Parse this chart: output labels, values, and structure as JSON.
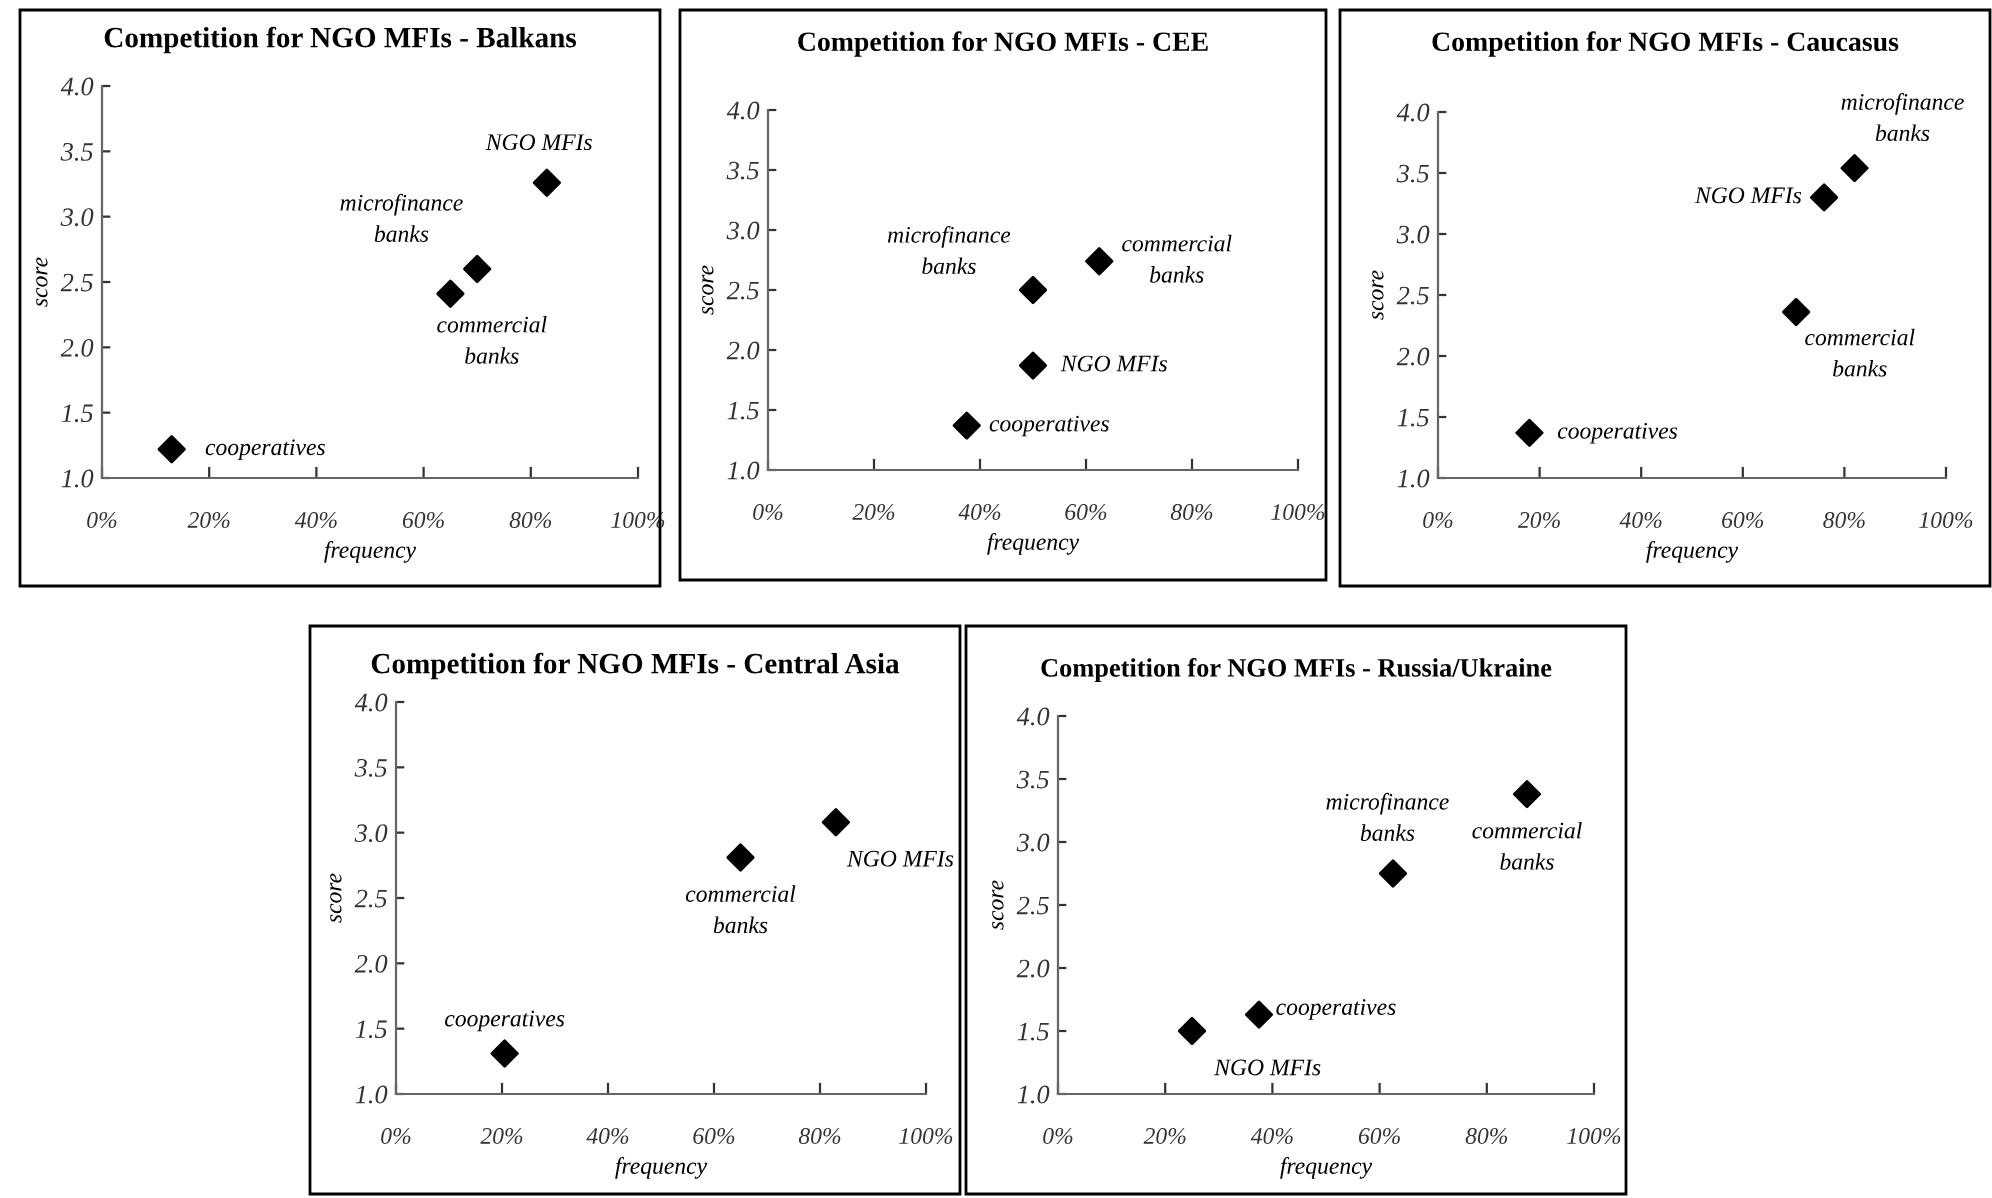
{
  "chart_data": [
    {
      "type": "scatter",
      "title": "Competition for NGO MFIs - Balkans",
      "xlabel": "frequency",
      "ylabel": "score",
      "marker": "diamond",
      "grid": false,
      "series": [
        {
          "color": "#000000",
          "x": [
            13,
            65,
            70,
            83
          ],
          "values": [
            1.22,
            2.41,
            2.6,
            3.26
          ]
        }
      ],
      "xlim": [
        0,
        100
      ],
      "xticks": [
        {
          "value": 0,
          "label": "0%"
        },
        {
          "value": 20,
          "label": "20%"
        },
        {
          "value": 40,
          "label": "40%"
        },
        {
          "value": 60,
          "label": "60%"
        },
        {
          "value": 80,
          "label": "80%"
        },
        {
          "value": 100,
          "label": "100%"
        }
      ],
      "ylim": [
        1.0,
        4.0
      ],
      "yticks": [
        {
          "value": 1.0,
          "label": "1.0"
        },
        {
          "value": 1.5,
          "label": "1.5"
        },
        {
          "value": 2.0,
          "label": "2.0"
        },
        {
          "value": 2.5,
          "label": "2.5"
        },
        {
          "value": 3.0,
          "label": "3.0"
        },
        {
          "value": 3.5,
          "label": "3.5"
        },
        {
          "value": 4.0,
          "label": "4.0"
        }
      ],
      "annotations": [
        {
          "text": "cooperatives",
          "x": 13,
          "y": 1.22
        },
        {
          "text": "commercial\nbanks",
          "x": 65,
          "y": 2.41
        },
        {
          "text": "microfinance\nbanks",
          "x": 70,
          "y": 2.6
        },
        {
          "text": "NGO MFIs",
          "x": 83,
          "y": 3.26
        }
      ]
    },
    {
      "type": "scatter",
      "title": "Competition for NGO MFIs - CEE",
      "xlabel": "frequency",
      "ylabel": "score",
      "marker": "diamond",
      "grid": false,
      "series": [
        {
          "color": "#000000",
          "x": [
            37.5,
            50,
            50,
            62.5
          ],
          "values": [
            1.37,
            2.5,
            1.87,
            2.74
          ]
        }
      ],
      "xlim": [
        0,
        100
      ],
      "xticks": [
        {
          "value": 0,
          "label": "0%"
        },
        {
          "value": 20,
          "label": "20%"
        },
        {
          "value": 40,
          "label": "40%"
        },
        {
          "value": 60,
          "label": "60%"
        },
        {
          "value": 80,
          "label": "80%"
        },
        {
          "value": 100,
          "label": "100%"
        }
      ],
      "ylim": [
        1.0,
        4.0
      ],
      "yticks": [
        {
          "value": 1.0,
          "label": "1.0"
        },
        {
          "value": 1.5,
          "label": "1.5"
        },
        {
          "value": 2.0,
          "label": "2.0"
        },
        {
          "value": 2.5,
          "label": "2.5"
        },
        {
          "value": 3.0,
          "label": "3.0"
        },
        {
          "value": 3.5,
          "label": "3.5"
        },
        {
          "value": 4.0,
          "label": "4.0"
        }
      ],
      "annotations": [
        {
          "text": "cooperatives",
          "x": 37.5,
          "y": 1.37
        },
        {
          "text": "microfinance\nbanks",
          "x": 50,
          "y": 2.5
        },
        {
          "text": "NGO MFIs",
          "x": 50,
          "y": 1.87
        },
        {
          "text": "commercial\nbanks",
          "x": 62.5,
          "y": 2.74
        }
      ]
    },
    {
      "type": "scatter",
      "title": "Competition for NGO MFIs - Caucasus",
      "xlabel": "frequency",
      "ylabel": "score",
      "marker": "diamond",
      "grid": false,
      "series": [
        {
          "color": "#000000",
          "x": [
            18,
            70.5,
            76,
            82
          ],
          "values": [
            1.37,
            2.36,
            3.3,
            3.54
          ]
        }
      ],
      "xlim": [
        0,
        100
      ],
      "xticks": [
        {
          "value": 0,
          "label": "0%"
        },
        {
          "value": 20,
          "label": "20%"
        },
        {
          "value": 40,
          "label": "40%"
        },
        {
          "value": 60,
          "label": "60%"
        },
        {
          "value": 80,
          "label": "80%"
        },
        {
          "value": 100,
          "label": "100%"
        }
      ],
      "ylim": [
        1.0,
        4.0
      ],
      "yticks": [
        {
          "value": 1.0,
          "label": "1.0"
        },
        {
          "value": 1.5,
          "label": "1.5"
        },
        {
          "value": 2.0,
          "label": "2.0"
        },
        {
          "value": 2.5,
          "label": "2.5"
        },
        {
          "value": 3.0,
          "label": "3.0"
        },
        {
          "value": 3.5,
          "label": "3.5"
        },
        {
          "value": 4.0,
          "label": "4.0"
        }
      ],
      "annotations": [
        {
          "text": "cooperatives",
          "x": 18,
          "y": 1.37
        },
        {
          "text": "commercial\nbanks",
          "x": 70.5,
          "y": 2.36
        },
        {
          "text": "NGO MFIs",
          "x": 76,
          "y": 3.3
        },
        {
          "text": "microfinance\nbanks",
          "x": 82,
          "y": 3.54
        }
      ]
    },
    {
      "type": "scatter",
      "title": "Competition for NGO MFIs - Central Asia",
      "xlabel": "frequency",
      "ylabel": "score",
      "marker": "diamond",
      "grid": false,
      "series": [
        {
          "color": "#000000",
          "x": [
            20.5,
            65,
            83
          ],
          "values": [
            1.31,
            2.81,
            3.08
          ]
        }
      ],
      "xlim": [
        0,
        100
      ],
      "xticks": [
        {
          "value": 0,
          "label": "0%"
        },
        {
          "value": 20,
          "label": "20%"
        },
        {
          "value": 40,
          "label": "40%"
        },
        {
          "value": 60,
          "label": "60%"
        },
        {
          "value": 80,
          "label": "80%"
        },
        {
          "value": 100,
          "label": "100%"
        }
      ],
      "ylim": [
        1.0,
        4.0
      ],
      "yticks": [
        {
          "value": 1.0,
          "label": "1.0"
        },
        {
          "value": 1.5,
          "label": "1.5"
        },
        {
          "value": 2.0,
          "label": "2.0"
        },
        {
          "value": 2.5,
          "label": "2.5"
        },
        {
          "value": 3.0,
          "label": "3.0"
        },
        {
          "value": 3.5,
          "label": "3.5"
        },
        {
          "value": 4.0,
          "label": "4.0"
        }
      ],
      "annotations": [
        {
          "text": "cooperatives",
          "x": 20.5,
          "y": 1.31
        },
        {
          "text": "commercial\nbanks",
          "x": 65,
          "y": 2.81
        },
        {
          "text": "NGO MFIs",
          "x": 83,
          "y": 3.08
        }
      ]
    },
    {
      "type": "scatter",
      "title": "Competition for NGO MFIs - Russia/Ukraine",
      "xlabel": "frequency",
      "ylabel": "score",
      "marker": "diamond",
      "grid": false,
      "series": [
        {
          "color": "#000000",
          "x": [
            25,
            37.5,
            62.5,
            87.5
          ],
          "values": [
            1.5,
            1.63,
            2.75,
            3.38
          ]
        }
      ],
      "xlim": [
        0,
        100
      ],
      "xticks": [
        {
          "value": 0,
          "label": "0%"
        },
        {
          "value": 20,
          "label": "20%"
        },
        {
          "value": 40,
          "label": "40%"
        },
        {
          "value": 60,
          "label": "60%"
        },
        {
          "value": 80,
          "label": "80%"
        },
        {
          "value": 100,
          "label": "100%"
        }
      ],
      "ylim": [
        1.0,
        4.0
      ],
      "yticks": [
        {
          "value": 1.0,
          "label": "1.0"
        },
        {
          "value": 1.5,
          "label": "1.5"
        },
        {
          "value": 2.0,
          "label": "2.0"
        },
        {
          "value": 2.5,
          "label": "2.5"
        },
        {
          "value": 3.0,
          "label": "3.0"
        },
        {
          "value": 3.5,
          "label": "3.5"
        },
        {
          "value": 4.0,
          "label": "4.0"
        }
      ],
      "annotations": [
        {
          "text": "NGO MFIs",
          "x": 25,
          "y": 1.5
        },
        {
          "text": "cooperatives",
          "x": 37.5,
          "y": 1.63
        },
        {
          "text": "microfinance\nbanks",
          "x": 62.5,
          "y": 2.75
        },
        {
          "text": "commercial\nbanks",
          "x": 87.5,
          "y": 3.38
        }
      ]
    }
  ]
}
